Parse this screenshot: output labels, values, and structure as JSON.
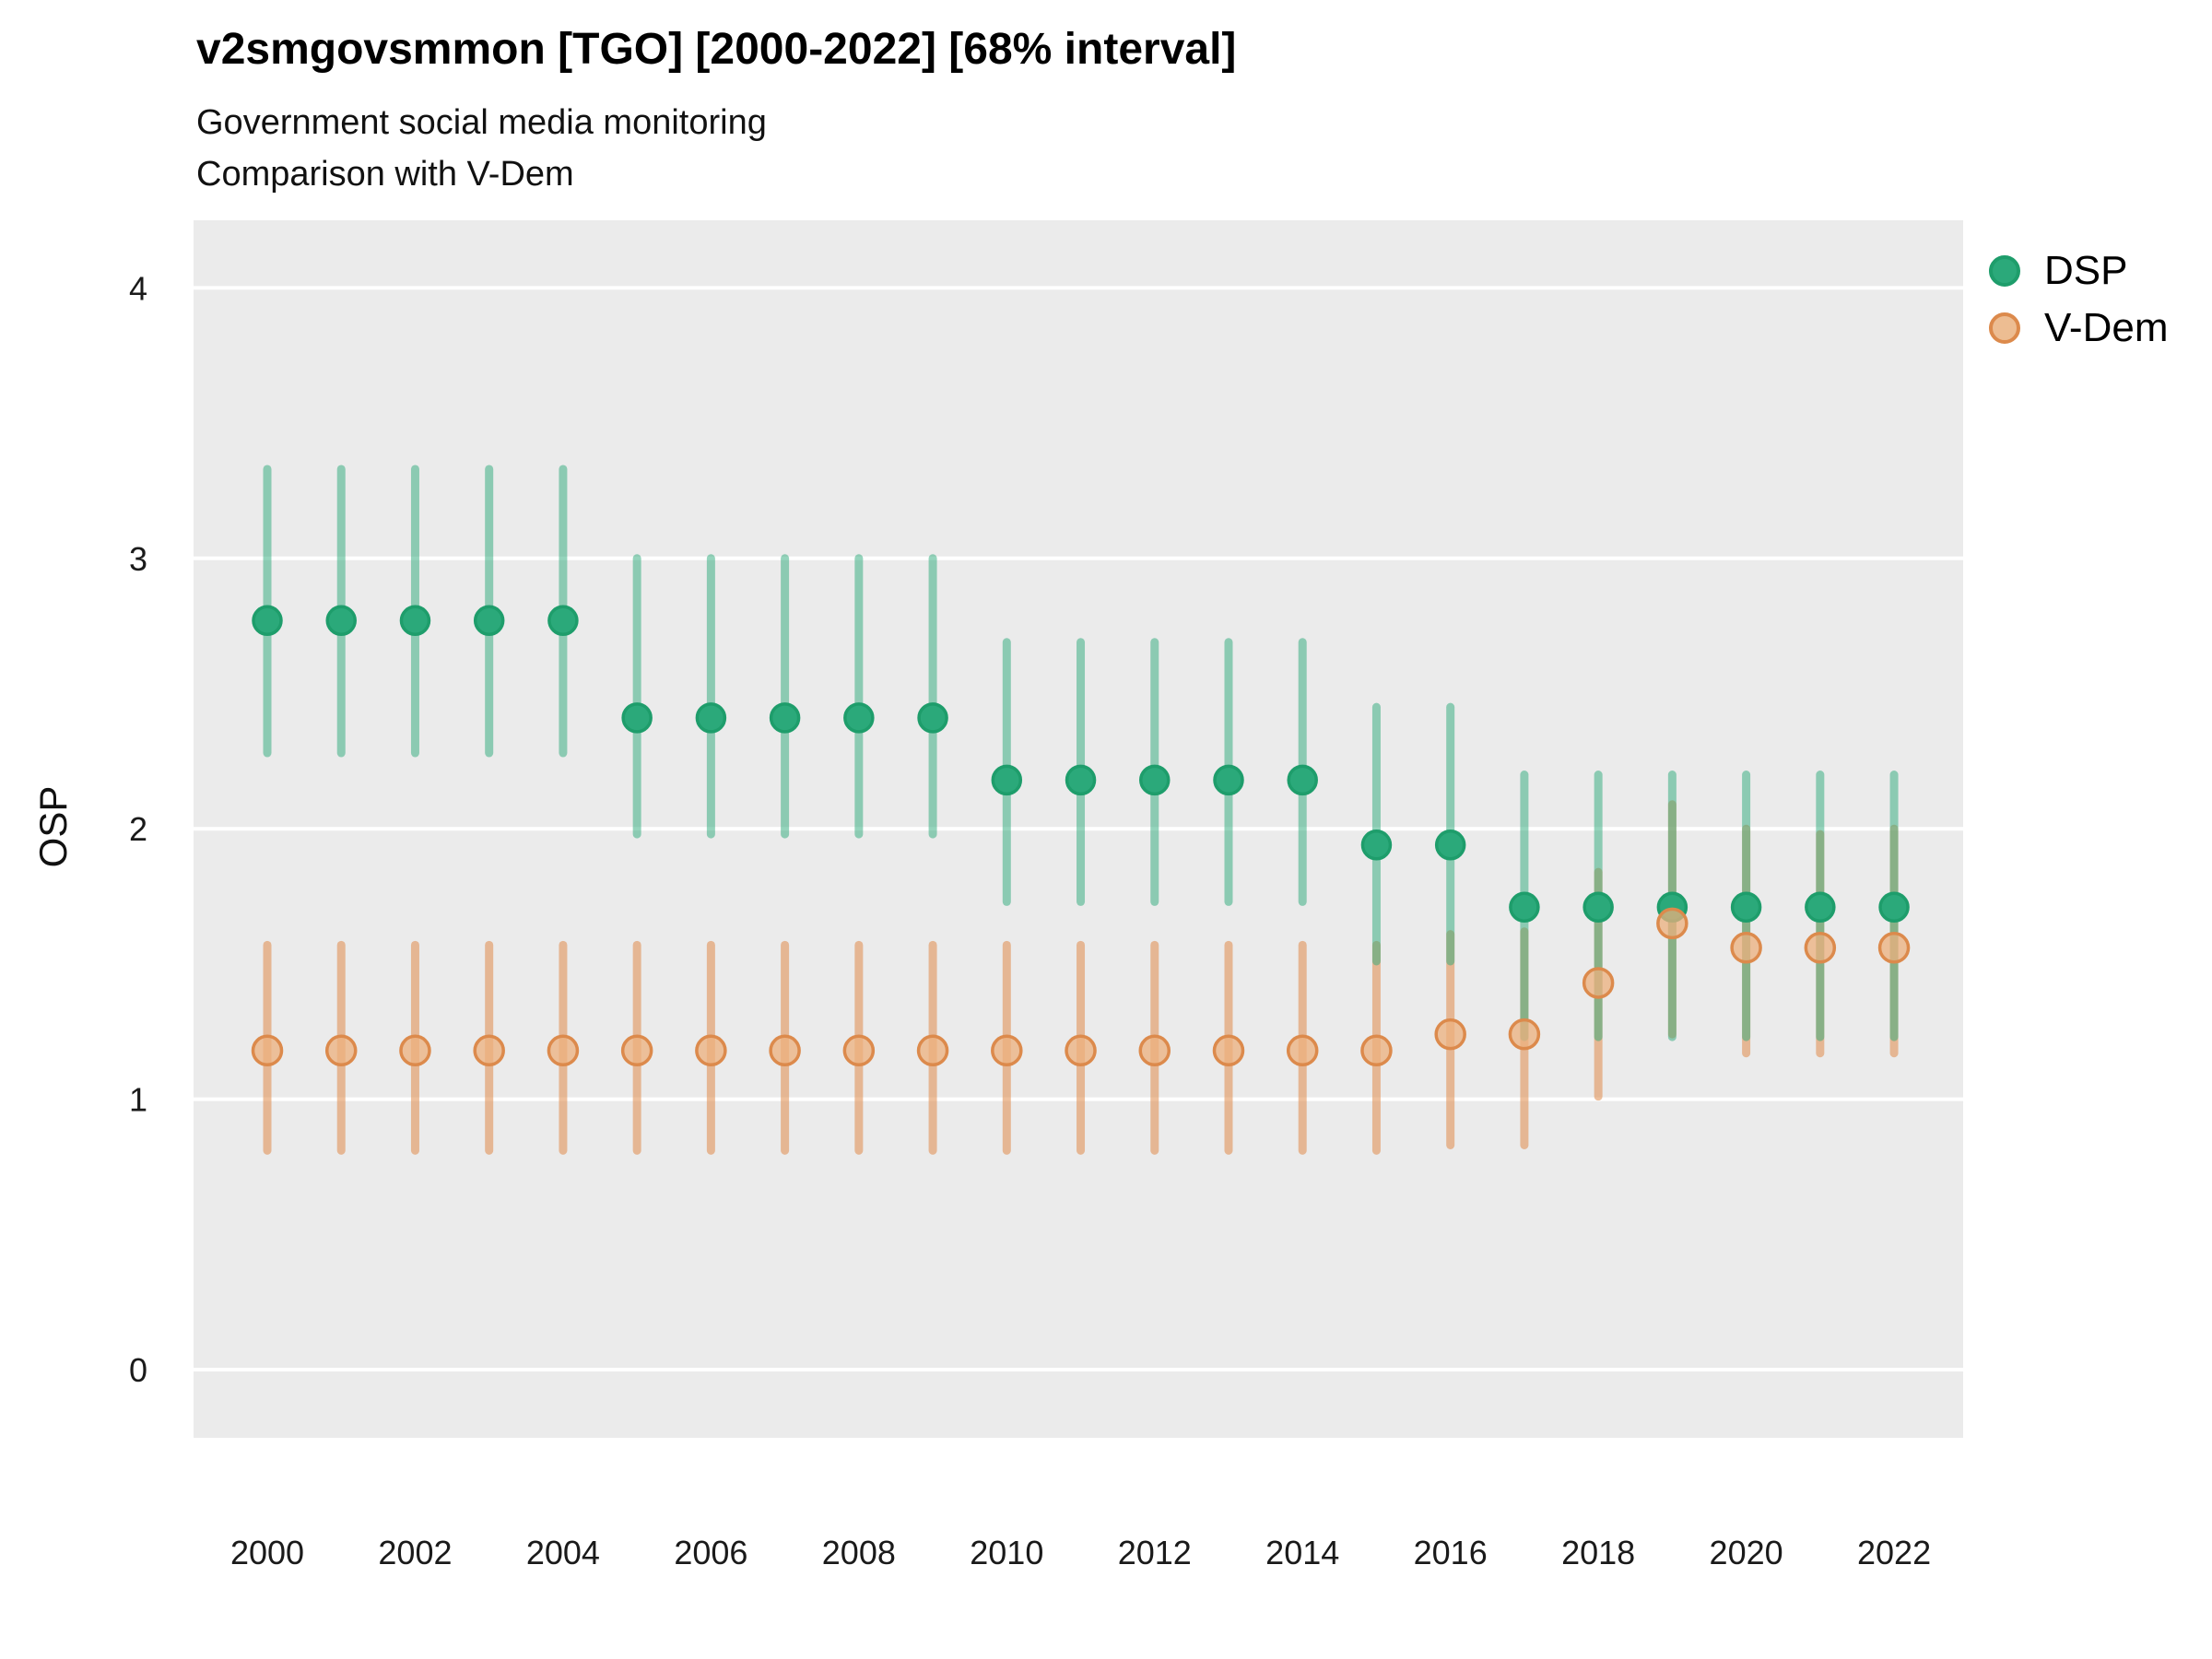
{
  "title": "v2smgovsmmon [TGO] [2000-2022] [68% interval]",
  "subtitle1": "Government social media monitoring",
  "subtitle2": "Comparison with V-Dem",
  "ylabel": "OSP",
  "legend": {
    "items": [
      {
        "label": "DSP",
        "fill": "#2BA97A",
        "stroke": "#1E9D6B"
      },
      {
        "label": "V-Dem",
        "fill": "#EDBD92",
        "stroke": "#DC8A4C"
      }
    ]
  },
  "colors": {
    "panel": "#EBEBEB",
    "grid": "#FFFFFF",
    "dsp_point_fill": "#2BA97A",
    "dsp_point_stroke": "#1E9D6B",
    "dsp_bar": "rgba(43,169,122,0.50)",
    "vdem_point_fill": "rgba(236,176,125,0.75)",
    "vdem_point_stroke": "#DC8A4C",
    "vdem_bar": "rgba(224,138,74,0.55)",
    "tick_text": "#1a1a1a"
  },
  "chart_data": {
    "type": "pointrange",
    "title": "v2smgovsmmon [TGO] [2000-2022] [68% interval]",
    "subtitle": [
      "Government social media monitoring",
      "Comparison with V-Dem"
    ],
    "xlabel": "",
    "ylabel": "OSP",
    "interval": "68%",
    "x": [
      2000,
      2001,
      2002,
      2003,
      2004,
      2005,
      2006,
      2007,
      2008,
      2009,
      2010,
      2011,
      2012,
      2013,
      2014,
      2015,
      2016,
      2017,
      2018,
      2019,
      2020,
      2021,
      2022
    ],
    "series": [
      {
        "name": "DSP",
        "est": [
          2.77,
          2.77,
          2.77,
          2.77,
          2.77,
          2.41,
          2.41,
          2.41,
          2.41,
          2.41,
          2.18,
          2.18,
          2.18,
          2.18,
          2.18,
          1.94,
          1.94,
          1.71,
          1.71,
          1.71,
          1.71,
          1.71,
          1.71
        ],
        "lo": [
          2.28,
          2.28,
          2.28,
          2.28,
          2.28,
          1.98,
          1.98,
          1.98,
          1.98,
          1.98,
          1.73,
          1.73,
          1.73,
          1.73,
          1.73,
          1.51,
          1.51,
          1.23,
          1.23,
          1.23,
          1.23,
          1.23,
          1.23
        ],
        "hi": [
          3.33,
          3.33,
          3.33,
          3.33,
          3.33,
          3.0,
          3.0,
          3.0,
          3.0,
          3.0,
          2.69,
          2.69,
          2.69,
          2.69,
          2.69,
          2.45,
          2.45,
          2.2,
          2.2,
          2.2,
          2.2,
          2.2,
          2.2
        ]
      },
      {
        "name": "V-Dem",
        "est": [
          1.18,
          1.18,
          1.18,
          1.18,
          1.18,
          1.18,
          1.18,
          1.18,
          1.18,
          1.18,
          1.18,
          1.18,
          1.18,
          1.18,
          1.18,
          1.18,
          1.24,
          1.24,
          1.43,
          1.65,
          1.56,
          1.56,
          1.56
        ],
        "lo": [
          0.81,
          0.81,
          0.81,
          0.81,
          0.81,
          0.81,
          0.81,
          0.81,
          0.81,
          0.81,
          0.81,
          0.81,
          0.81,
          0.81,
          0.81,
          0.81,
          0.83,
          0.83,
          1.01,
          1.24,
          1.17,
          1.17,
          1.17
        ],
        "hi": [
          1.57,
          1.57,
          1.57,
          1.57,
          1.57,
          1.57,
          1.57,
          1.57,
          1.57,
          1.57,
          1.57,
          1.57,
          1.57,
          1.57,
          1.57,
          1.57,
          1.61,
          1.62,
          1.84,
          2.09,
          2.0,
          1.98,
          2.0
        ]
      }
    ],
    "x_ticks": [
      2000,
      2002,
      2004,
      2006,
      2008,
      2010,
      2012,
      2014,
      2016,
      2018,
      2020,
      2022
    ],
    "y_ticks": [
      0,
      1,
      2,
      3,
      4
    ],
    "ylim": [
      -0.25,
      4.25
    ],
    "grid": "major-horizontal",
    "legend_position": "right-top"
  }
}
